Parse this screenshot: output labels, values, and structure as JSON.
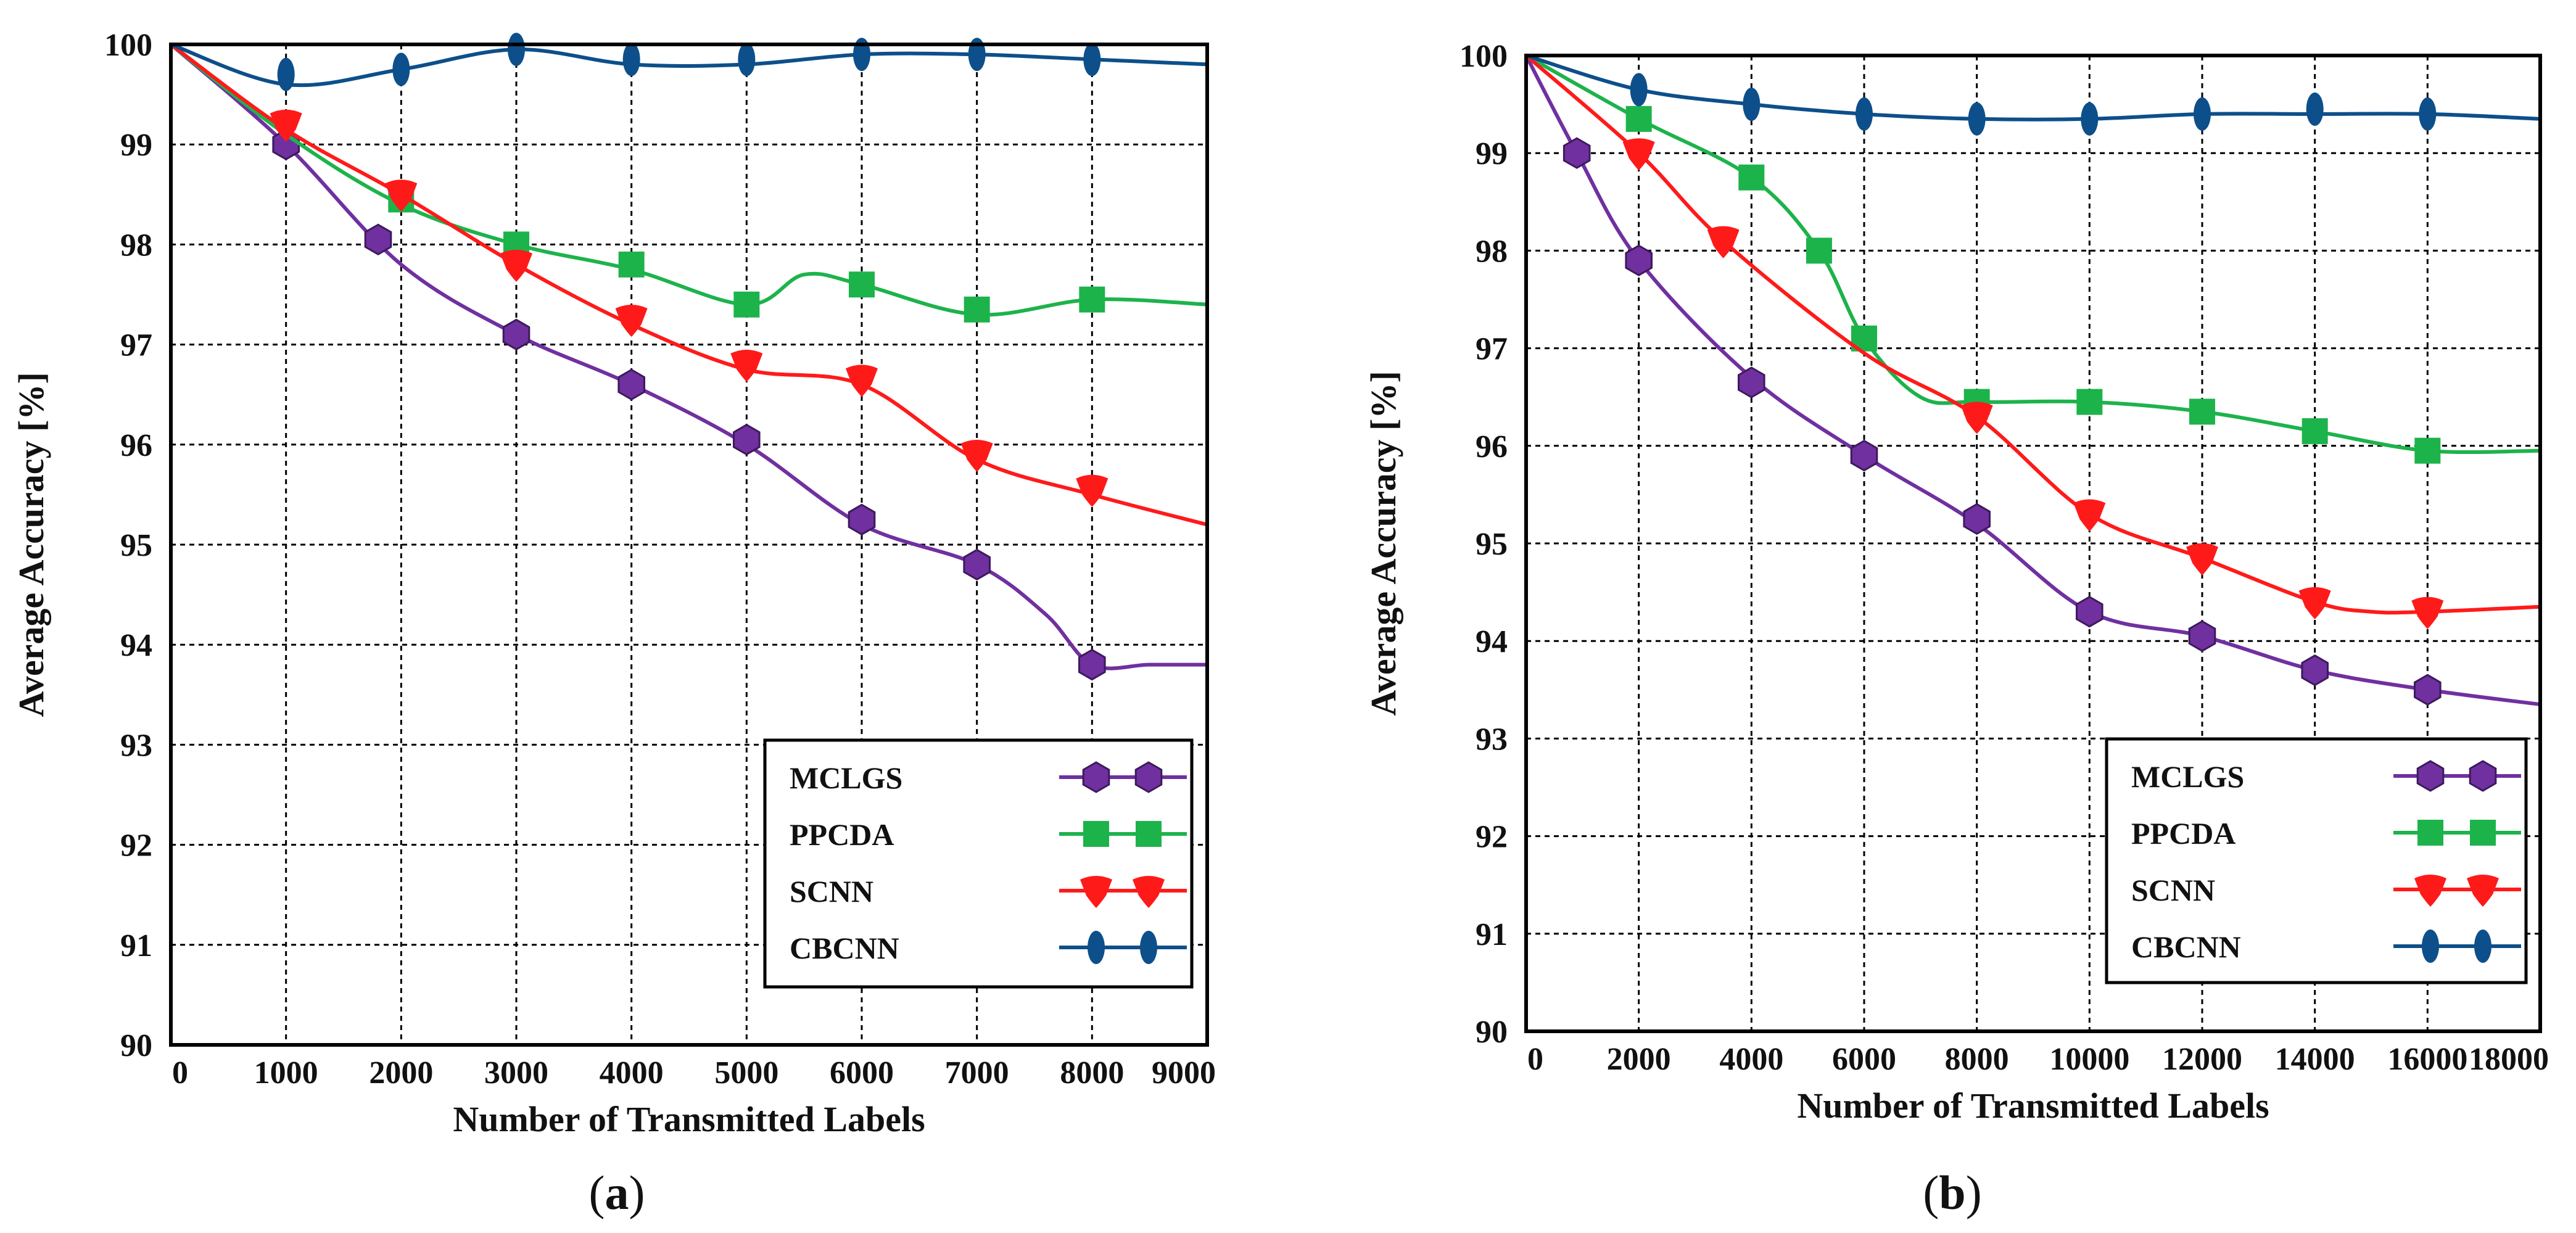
{
  "chart_data": [
    {
      "panel_label": "a",
      "type": "line",
      "xlabel": "Number of Transmitted Labels",
      "ylabel": "Average Accuracy [%]",
      "xlim": [
        0,
        9000
      ],
      "ylim": [
        90,
        100
      ],
      "xticks": [
        0,
        1000,
        2000,
        3000,
        4000,
        5000,
        6000,
        7000,
        8000,
        9000
      ],
      "yticks": [
        90,
        91,
        92,
        93,
        94,
        95,
        96,
        97,
        98,
        99,
        100
      ],
      "grid": true,
      "legend_position": "bottom-right",
      "series": [
        {
          "name": "MCLGS",
          "color": "#7030a0",
          "marker": "hexagon",
          "curve": [
            [
              0,
              100
            ],
            [
              1000,
              99.0
            ],
            [
              2000,
              97.8
            ],
            [
              3000,
              97.1
            ],
            [
              4000,
              96.6
            ],
            [
              5000,
              96.0
            ],
            [
              6000,
              95.2
            ],
            [
              7000,
              94.8
            ],
            [
              7600,
              94.3
            ],
            [
              8000,
              93.8
            ],
            [
              8500,
              93.8
            ],
            [
              9000,
              93.8
            ]
          ],
          "points": [
            [
              1000,
              99.0
            ],
            [
              1800,
              98.05
            ],
            [
              3000,
              97.1
            ],
            [
              4000,
              96.6
            ],
            [
              5000,
              96.05
            ],
            [
              6000,
              95.25
            ],
            [
              7000,
              94.8
            ],
            [
              8000,
              93.8
            ]
          ]
        },
        {
          "name": "PPCDA",
          "color": "#1db34b",
          "marker": "square",
          "curve": [
            [
              0,
              100
            ],
            [
              1000,
              99.1
            ],
            [
              2000,
              98.4
            ],
            [
              3000,
              98.0
            ],
            [
              4000,
              97.75
            ],
            [
              5000,
              97.4
            ],
            [
              5500,
              97.7
            ],
            [
              6000,
              97.6
            ],
            [
              7000,
              97.3
            ],
            [
              8000,
              97.45
            ],
            [
              9000,
              97.4
            ]
          ],
          "points": [
            [
              2000,
              98.45
            ],
            [
              3000,
              98.0
            ],
            [
              4000,
              97.8
            ],
            [
              5000,
              97.4
            ],
            [
              6000,
              97.6
            ],
            [
              7000,
              97.35
            ],
            [
              8000,
              97.45
            ]
          ]
        },
        {
          "name": "SCNN",
          "color": "#ff1a1a",
          "marker": "shield",
          "curve": [
            [
              0,
              100
            ],
            [
              1000,
              99.15
            ],
            [
              2000,
              98.5
            ],
            [
              3000,
              97.8
            ],
            [
              4000,
              97.2
            ],
            [
              5000,
              96.75
            ],
            [
              6000,
              96.6
            ],
            [
              7000,
              95.85
            ],
            [
              8000,
              95.5
            ],
            [
              9000,
              95.2
            ]
          ],
          "points": [
            [
              1000,
              99.2
            ],
            [
              2000,
              98.5
            ],
            [
              3000,
              97.8
            ],
            [
              4000,
              97.25
            ],
            [
              5000,
              96.8
            ],
            [
              6000,
              96.65
            ],
            [
              7000,
              95.9
            ],
            [
              8000,
              95.55
            ]
          ]
        },
        {
          "name": "CBCNN",
          "color": "#0d4f8a",
          "marker": "ellipse",
          "curve": [
            [
              0,
              100
            ],
            [
              1000,
              99.6
            ],
            [
              2000,
              99.75
            ],
            [
              3000,
              99.95
            ],
            [
              4000,
              99.8
            ],
            [
              5000,
              99.8
            ],
            [
              6000,
              99.9
            ],
            [
              7000,
              99.9
            ],
            [
              8000,
              99.85
            ],
            [
              9000,
              99.8
            ]
          ],
          "points": [
            [
              1000,
              99.7
            ],
            [
              2000,
              99.75
            ],
            [
              3000,
              99.95
            ],
            [
              4000,
              99.85
            ],
            [
              5000,
              99.85
            ],
            [
              6000,
              99.9
            ],
            [
              7000,
              99.9
            ],
            [
              8000,
              99.85
            ]
          ]
        }
      ]
    },
    {
      "panel_label": "b",
      "type": "line",
      "xlabel": "Number of Transmitted Labels",
      "ylabel": "Average Accuracy [%]",
      "xlim": [
        0,
        18000
      ],
      "ylim": [
        90,
        100
      ],
      "xticks": [
        0,
        2000,
        4000,
        6000,
        8000,
        10000,
        12000,
        14000,
        16000,
        18000
      ],
      "yticks": [
        90,
        91,
        92,
        93,
        94,
        95,
        96,
        97,
        98,
        99,
        100
      ],
      "grid": true,
      "legend_position": "bottom-right",
      "series": [
        {
          "name": "MCLGS",
          "color": "#7030a0",
          "marker": "hexagon",
          "curve": [
            [
              0,
              100
            ],
            [
              900,
              99.0
            ],
            [
              2000,
              97.9
            ],
            [
              4000,
              96.7
            ],
            [
              6000,
              95.9
            ],
            [
              8000,
              95.2
            ],
            [
              10000,
              94.3
            ],
            [
              12000,
              94.05
            ],
            [
              14000,
              93.7
            ],
            [
              16000,
              93.5
            ],
            [
              18000,
              93.35
            ]
          ],
          "points": [
            [
              900,
              99.0
            ],
            [
              2000,
              97.9
            ],
            [
              4000,
              96.65
            ],
            [
              6000,
              95.9
            ],
            [
              8000,
              95.25
            ],
            [
              10000,
              94.3
            ],
            [
              12000,
              94.05
            ],
            [
              14000,
              93.7
            ],
            [
              16000,
              93.5
            ]
          ]
        },
        {
          "name": "PPCDA",
          "color": "#1db34b",
          "marker": "square",
          "curve": [
            [
              0,
              100
            ],
            [
              2000,
              99.35
            ],
            [
              4000,
              98.75
            ],
            [
              5200,
              98.0
            ],
            [
              6000,
              97.1
            ],
            [
              7000,
              96.5
            ],
            [
              8000,
              96.45
            ],
            [
              10000,
              96.45
            ],
            [
              12000,
              96.35
            ],
            [
              14000,
              96.15
            ],
            [
              16000,
              95.95
            ],
            [
              18000,
              95.95
            ]
          ],
          "points": [
            [
              2000,
              99.35
            ],
            [
              4000,
              98.75
            ],
            [
              5200,
              98.0
            ],
            [
              6000,
              97.1
            ],
            [
              8000,
              96.45
            ],
            [
              10000,
              96.45
            ],
            [
              12000,
              96.35
            ],
            [
              14000,
              96.15
            ],
            [
              16000,
              95.95
            ]
          ]
        },
        {
          "name": "SCNN",
          "color": "#ff1a1a",
          "marker": "shield",
          "curve": [
            [
              0,
              100
            ],
            [
              2000,
              99.0
            ],
            [
              3500,
              98.1
            ],
            [
              6000,
              96.95
            ],
            [
              8000,
              96.3
            ],
            [
              10000,
              95.3
            ],
            [
              12000,
              94.85
            ],
            [
              14000,
              94.4
            ],
            [
              15000,
              94.3
            ],
            [
              16000,
              94.3
            ],
            [
              18000,
              94.35
            ]
          ],
          "points": [
            [
              2000,
              99.0
            ],
            [
              3500,
              98.1
            ],
            [
              8000,
              96.3
            ],
            [
              10000,
              95.3
            ],
            [
              12000,
              94.85
            ],
            [
              14000,
              94.4
            ],
            [
              16000,
              94.3
            ]
          ]
        },
        {
          "name": "CBCNN",
          "color": "#0d4f8a",
          "marker": "ellipse",
          "curve": [
            [
              0,
              100
            ],
            [
              2000,
              99.65
            ],
            [
              4000,
              99.5
            ],
            [
              6000,
              99.4
            ],
            [
              8000,
              99.35
            ],
            [
              10000,
              99.35
            ],
            [
              12000,
              99.4
            ],
            [
              14000,
              99.4
            ],
            [
              16000,
              99.4
            ],
            [
              18000,
              99.35
            ]
          ],
          "points": [
            [
              2000,
              99.65
            ],
            [
              4000,
              99.5
            ],
            [
              6000,
              99.4
            ],
            [
              8000,
              99.35
            ],
            [
              10000,
              99.35
            ],
            [
              12000,
              99.4
            ],
            [
              14000,
              99.45
            ],
            [
              16000,
              99.4
            ]
          ]
        }
      ]
    }
  ]
}
